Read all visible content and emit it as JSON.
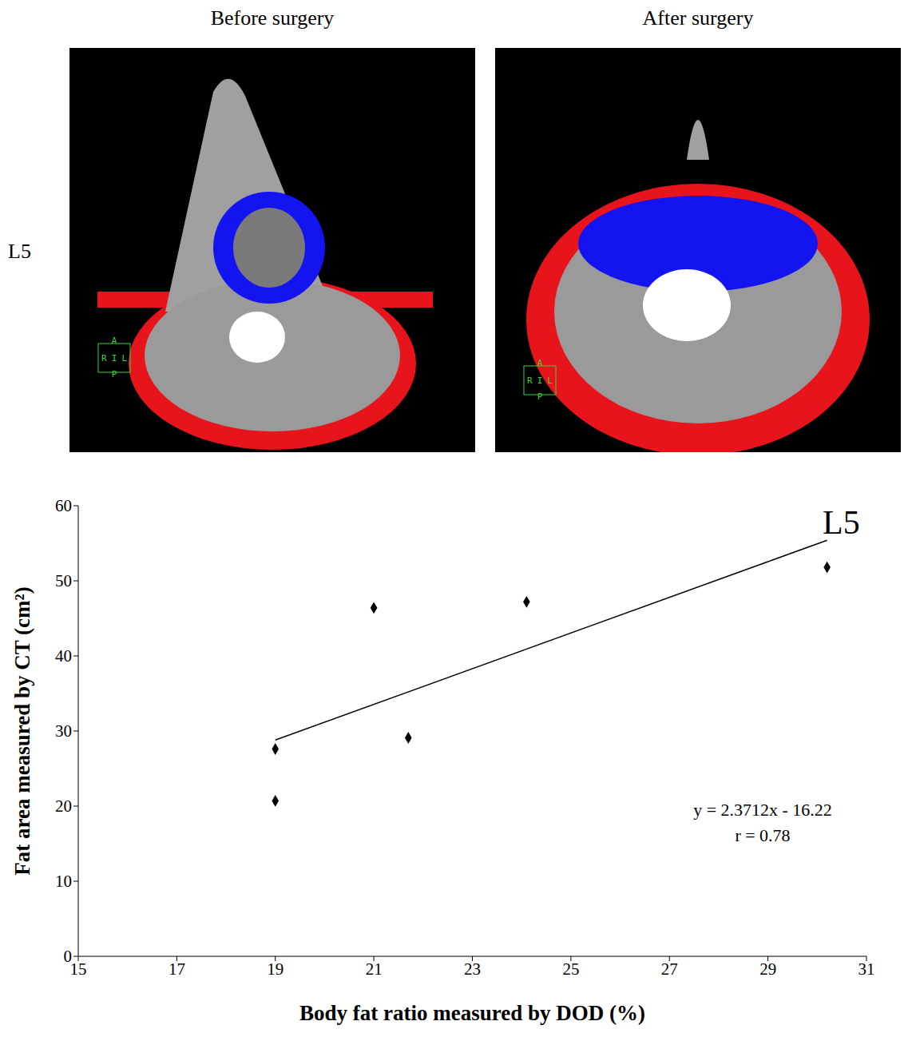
{
  "panels": [
    {
      "title": "Before surgery"
    },
    {
      "title": "After surgery"
    }
  ],
  "row_label": "L5",
  "orientation_labels": {
    "top": "A",
    "left": "R",
    "center": "I",
    "right": "L",
    "bottom": "P"
  },
  "chart_data": {
    "type": "scatter",
    "x_label": "Body fat ratio measured by DOD (%)",
    "y_label": "Fat area measured by CT (cm²)",
    "x": [
      19,
      19,
      21,
      21.7,
      24.1,
      30.2
    ],
    "values": [
      27.6,
      20.7,
      46.4,
      29.1,
      47.2,
      51.8
    ],
    "color": "#000000",
    "marker": "diamond",
    "xlim": [
      15,
      31
    ],
    "xticks": [
      15,
      17,
      19,
      21,
      23,
      25,
      27,
      29,
      31
    ],
    "ylim": [
      0,
      60
    ],
    "yticks": [
      0,
      10,
      20,
      30,
      40,
      50,
      60
    ],
    "grid": false,
    "trendline": {
      "x": [
        19,
        30.2
      ],
      "y": [
        28.8,
        55.4
      ],
      "color": "#000000"
    },
    "annotations": [
      "L5",
      "y = 2.3712x - 16.22",
      "r = 0.78"
    ]
  }
}
